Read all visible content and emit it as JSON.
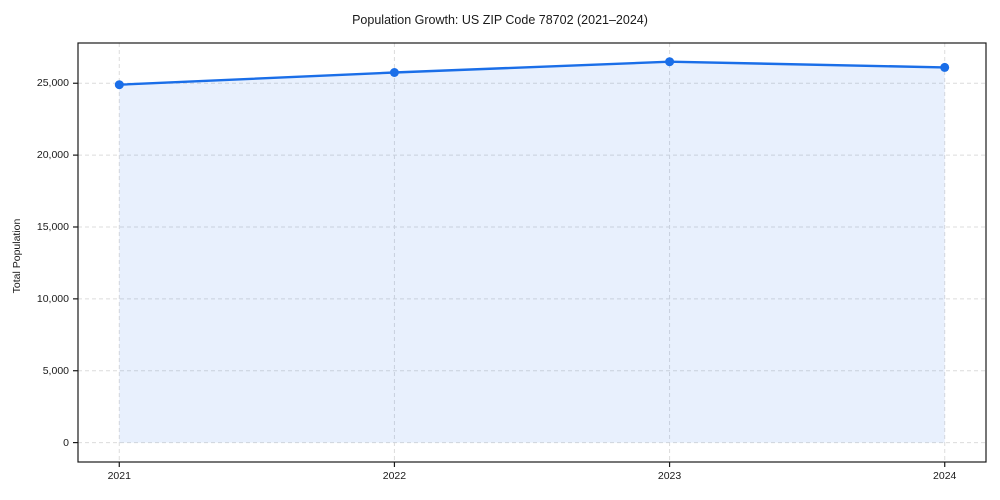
{
  "title": "Population Growth: US ZIP Code 78702 (2021–2024)",
  "chart_data": {
    "type": "area",
    "title": "Population Growth: US ZIP Code 78702 (2021–2024)",
    "xlabel": "",
    "ylabel": "Total Population",
    "x": [
      2021,
      2022,
      2023,
      2024
    ],
    "x_tick_labels": [
      "2021",
      "2022",
      "2023",
      "2024"
    ],
    "series": [
      {
        "name": "Total Population",
        "values": [
          24900,
          25750,
          26500,
          26100
        ]
      }
    ],
    "y_ticks": [
      0,
      5000,
      10000,
      15000,
      20000,
      25000
    ],
    "y_tick_labels": [
      "0",
      "5,000",
      "10,000",
      "15,000",
      "20,000",
      "25,000"
    ],
    "ylim": [
      -1350,
      27800
    ],
    "xlim": [
      2020.85,
      2024.15
    ],
    "grid": "dashed-both-axes",
    "legend": "none",
    "fill_to_zero": true,
    "colors": {
      "line": "#1a6ee8",
      "marker": "#1a6ee8",
      "fill": "rgba(26,110,232,0.10)",
      "grid": "#dcdcdc",
      "spine": "#1a1a1a",
      "text": "#1a1a1a"
    }
  }
}
